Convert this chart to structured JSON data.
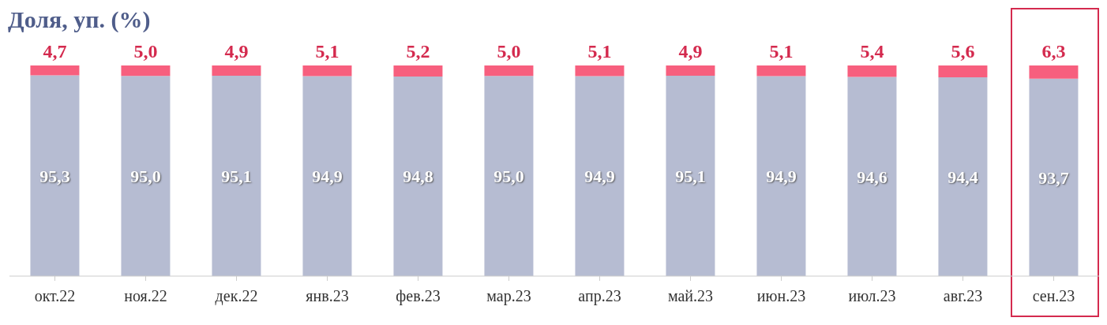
{
  "chart_data": {
    "type": "bar",
    "title": "Доля, уп. (%)",
    "stacked": true,
    "categories": [
      "окт.22",
      "ноя.22",
      "дек.22",
      "янв.23",
      "фев.23",
      "мар.23",
      "апр.23",
      "май.23",
      "июн.23",
      "июл.23",
      "авг.23",
      "сен.23"
    ],
    "series": [
      {
        "color": "#b6bcd2",
        "values": [
          95.3,
          95.0,
          95.1,
          94.9,
          94.8,
          95.0,
          94.9,
          95.1,
          94.9,
          94.6,
          94.4,
          93.7
        ],
        "value_labels": [
          "95,3",
          "95,0",
          "95,1",
          "94,9",
          "94,8",
          "95,0",
          "94,9",
          "95,1",
          "94,9",
          "94,6",
          "94,4",
          "93,7"
        ]
      },
      {
        "color": "#f75f7e",
        "values": [
          4.7,
          5.0,
          4.9,
          5.1,
          5.2,
          5.0,
          5.1,
          4.9,
          5.1,
          5.4,
          5.6,
          6.3
        ],
        "value_labels": [
          "4,7",
          "5,0",
          "4,9",
          "5,1",
          "5,2",
          "5,0",
          "5,1",
          "4,9",
          "5,1",
          "5,4",
          "5,6",
          "6,3"
        ]
      }
    ],
    "ylim": [
      0,
      100
    ],
    "tick_labels": "x",
    "grid": false
  }
}
